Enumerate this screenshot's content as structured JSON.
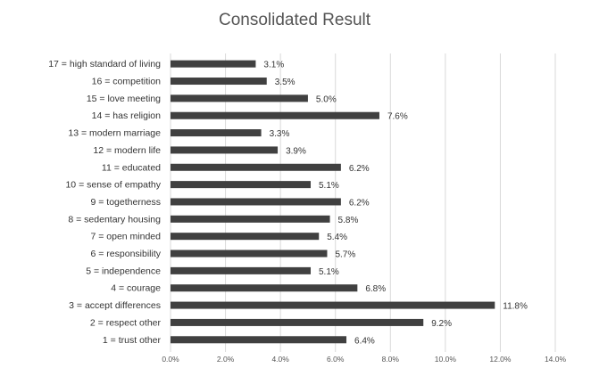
{
  "chart_data": {
    "type": "bar",
    "orientation": "horizontal",
    "title": "Consolidated Result",
    "categories": [
      "1 = trust other",
      "2 = respect other",
      "3 = accept differences",
      "4 = courage",
      "5 = independence",
      "6 = responsibility",
      "7 = open minded",
      "8 = sedentary housing",
      "9 = togetherness",
      "10 = sense of empathy",
      "11 = educated",
      "12 = modern life",
      "13 = modern marriage",
      "14 = has religion",
      "15 = love meeting",
      "16 = competition",
      "17 = high standard of living"
    ],
    "values": [
      6.4,
      9.2,
      11.8,
      6.8,
      5.1,
      5.7,
      5.4,
      5.8,
      6.2,
      5.1,
      6.2,
      3.9,
      3.3,
      7.6,
      5.0,
      3.5,
      3.1
    ],
    "value_labels": [
      "6.4%",
      "9.2%",
      "11.8%",
      "6.8%",
      "5.1%",
      "5.7%",
      "5.4%",
      "5.8%",
      "6.2%",
      "5.1%",
      "6.2%",
      "3.9%",
      "3.3%",
      "7.6%",
      "5.0%",
      "3.5%",
      "3.1%"
    ],
    "xlim": [
      0,
      14
    ],
    "xticks": [
      "0.0%",
      "2.0%",
      "4.0%",
      "6.0%",
      "8.0%",
      "10.0%",
      "12.0%",
      "14.0%"
    ],
    "grid": "vertical",
    "bar_color": "#404040",
    "grid_color": "#d9d9d9"
  }
}
